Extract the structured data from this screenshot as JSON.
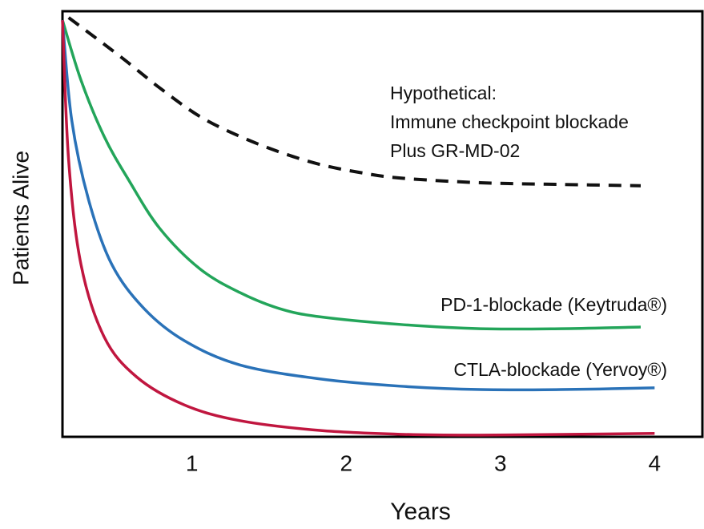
{
  "chart_data": {
    "type": "line",
    "xlabel": "Years",
    "ylabel": "Patients Alive",
    "xlim": [
      0.16,
      4.31
    ],
    "xticks": [
      1,
      2,
      3,
      4
    ],
    "ylim": [
      0,
      100
    ],
    "yticks": [],
    "series": [
      {
        "name": [
          "Hypothetical:",
          "Immune checkpoint blockade",
          "Plus GR-MD-02"
        ],
        "color": "#111111",
        "dashed": true,
        "x": [
          0.2,
          0.53,
          0.79,
          1.05,
          1.31,
          1.57,
          1.83,
          2.09,
          2.35,
          2.87,
          3.39,
          3.91
        ],
        "values": [
          98.5,
          89.5,
          82,
          75.3,
          70.6,
          66.9,
          64,
          62.1,
          60.8,
          59.7,
          59.3,
          59
        ]
      },
      {
        "name": "PD-1-blockade (Keytruda®)",
        "color": "#23a55a",
        "label_color": "#1f6fb8",
        "x": [
          0.16,
          0.28,
          0.43,
          0.59,
          0.79,
          1.05,
          1.31,
          1.57,
          1.83,
          2.35,
          2.87,
          3.39,
          3.91
        ],
        "values": [
          97.9,
          83.8,
          70.6,
          60.3,
          49,
          39.5,
          33.9,
          30.1,
          28.2,
          26.4,
          25.4,
          25.4,
          25.8
        ]
      },
      {
        "name": "CTLA-blockade (Yervoy®)",
        "color": "#2a72b8",
        "label_color": "#1f6fb8",
        "x": [
          0.16,
          0.22,
          0.33,
          0.48,
          0.69,
          0.95,
          1.31,
          1.83,
          2.35,
          2.87,
          3.39,
          4.0
        ],
        "values": [
          97.9,
          74.4,
          55.6,
          40.5,
          30.1,
          22.6,
          16.9,
          13.6,
          11.9,
          11.1,
          11.1,
          11.5
        ]
      },
      {
        "color": "#c0163f",
        "x": [
          0.16,
          0.2,
          0.28,
          0.43,
          0.64,
          0.95,
          1.31,
          1.83,
          2.35,
          2.87,
          4.0
        ],
        "values": [
          97.9,
          65,
          40.5,
          23.5,
          14.1,
          7.5,
          3.8,
          1.5,
          0.6,
          0.4,
          0.8
        ]
      }
    ]
  }
}
